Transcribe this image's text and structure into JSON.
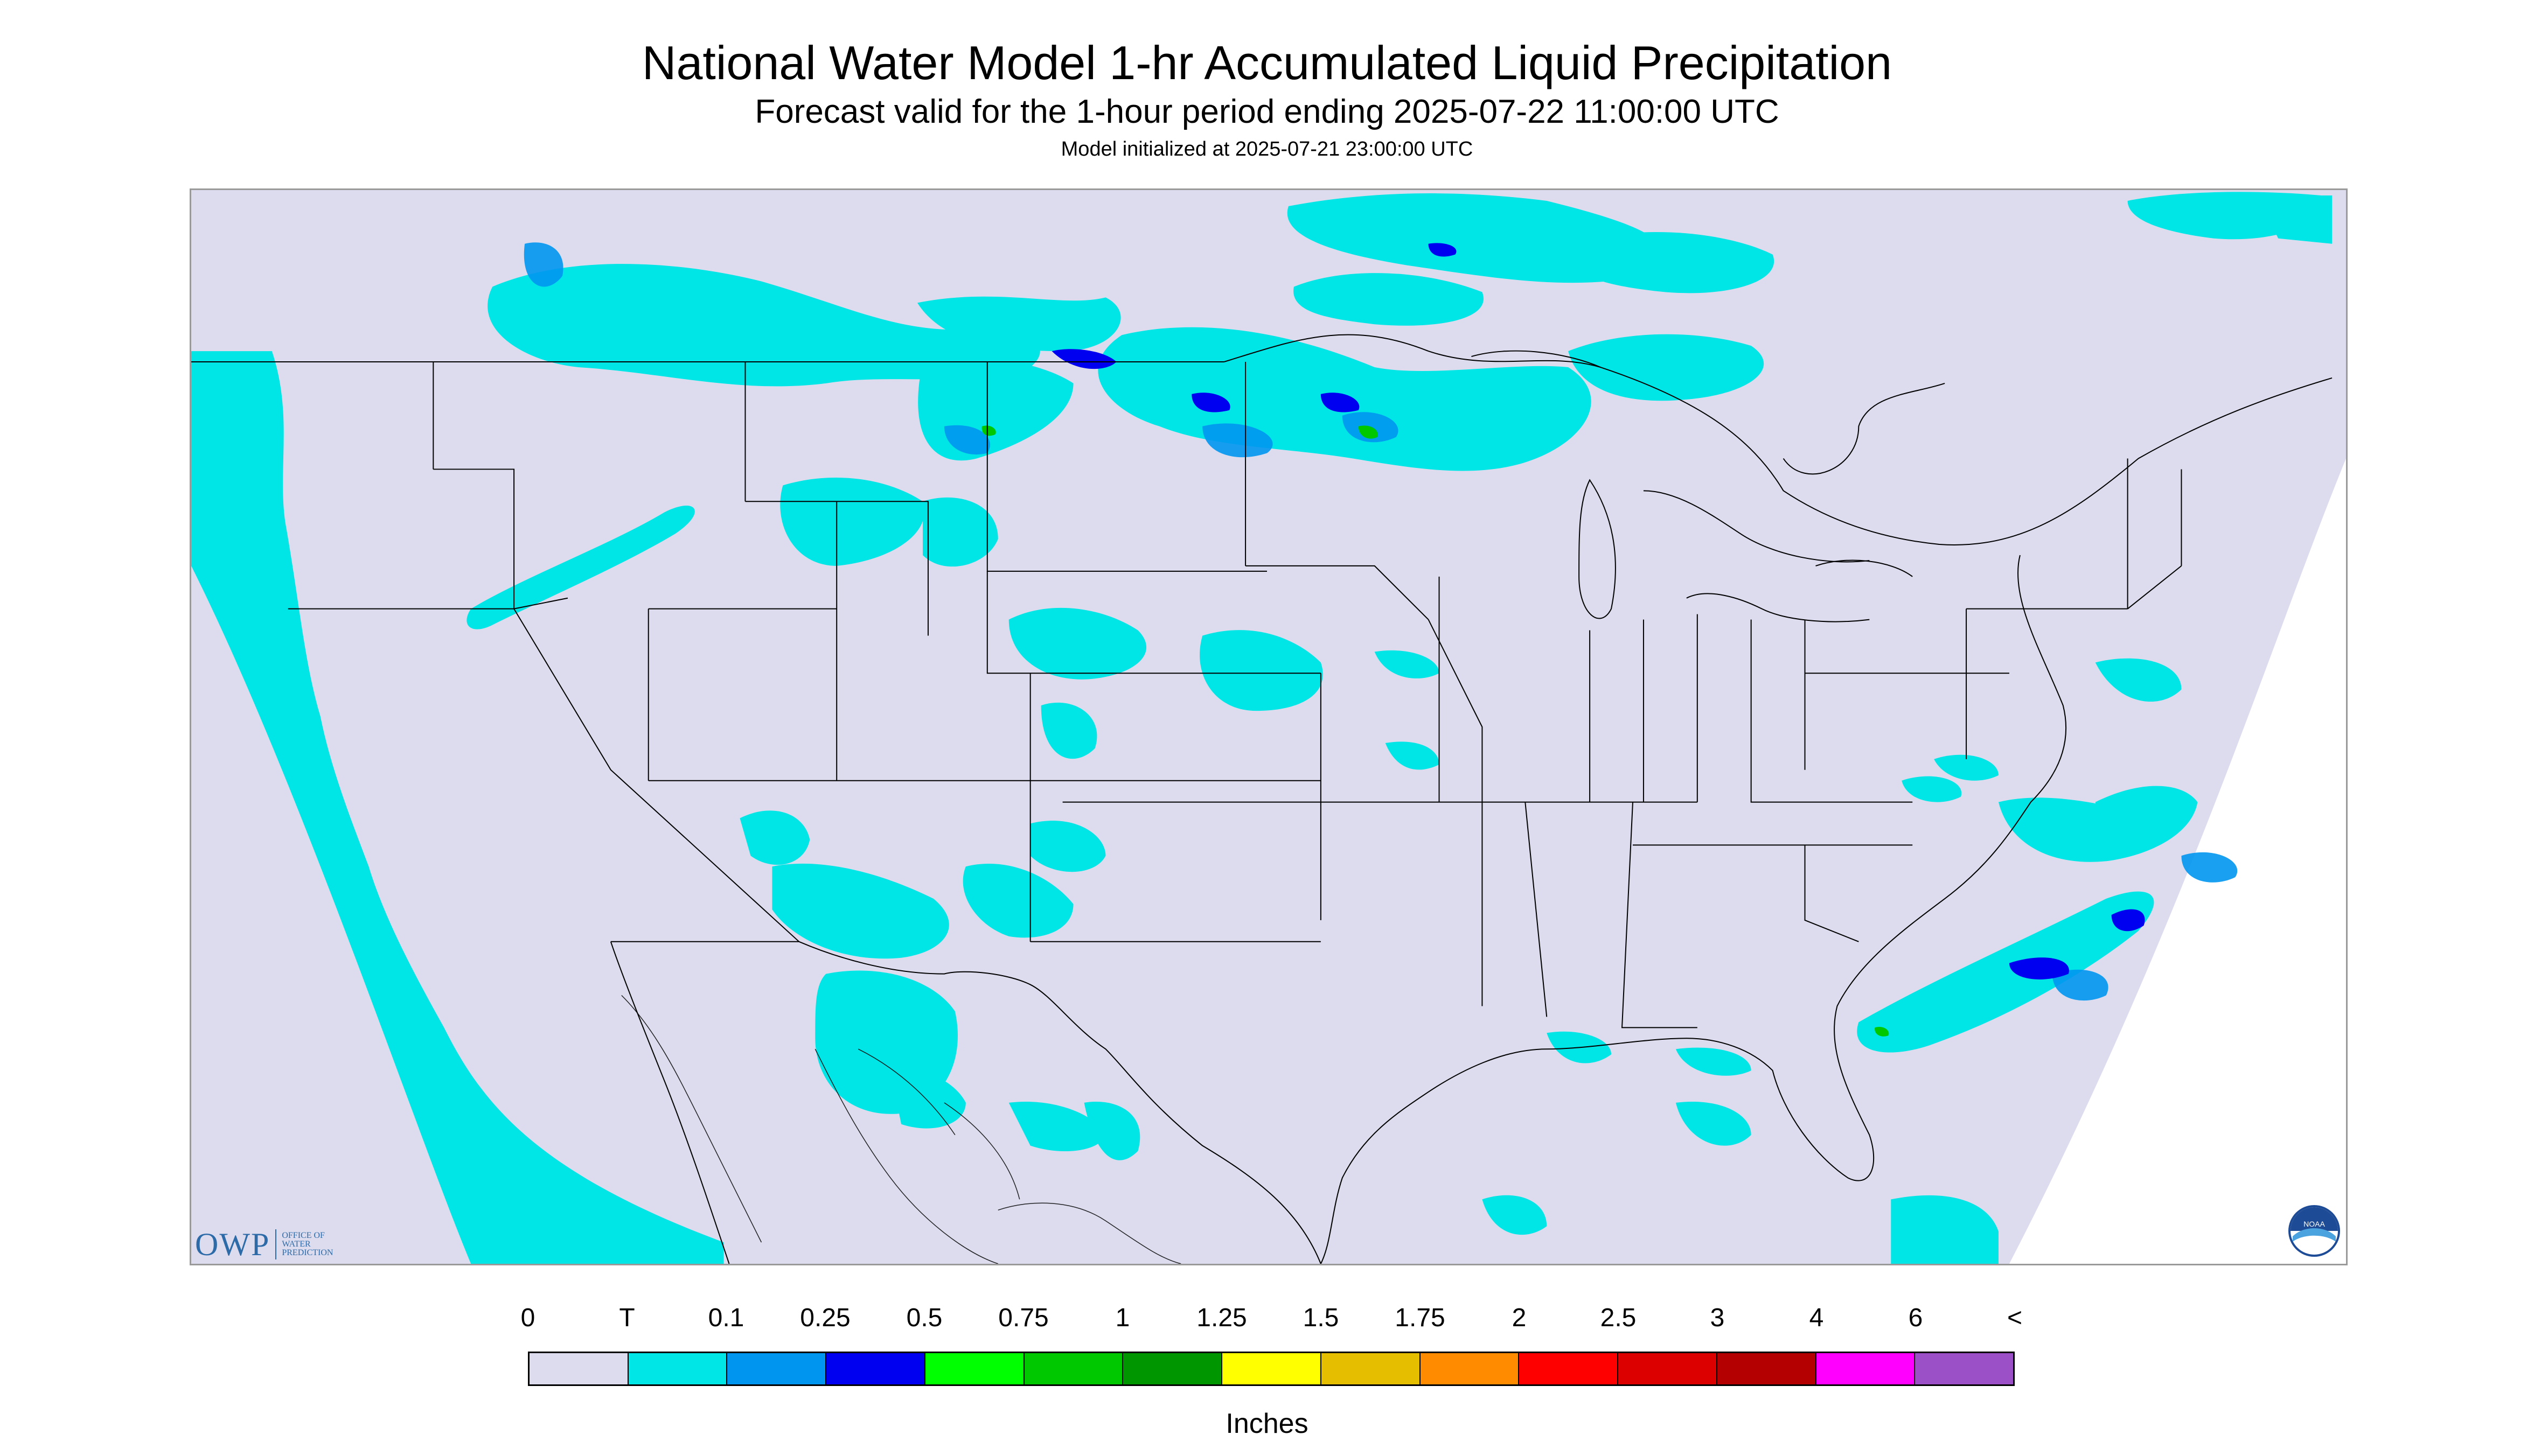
{
  "title": "National Water Model 1-hr Accumulated Liquid Precipitation",
  "subtitle": "Forecast valid for the 1-hour period ending 2025-07-22 11:00:00 UTC",
  "init_line": "Model initialized at 2025-07-21 23:00:00 UTC",
  "logos": {
    "owp_text": "OWP",
    "owp_subtext": [
      "OFFICE OF",
      "WATER",
      "PREDICTION"
    ],
    "noaa_text": "NOAA"
  },
  "legend": {
    "units": "Inches",
    "labels": [
      "0",
      "T",
      "0.1",
      "0.25",
      "0.5",
      "0.75",
      "1",
      "1.25",
      "1.5",
      "1.75",
      "2",
      "2.5",
      "3",
      "4",
      "6",
      "<"
    ],
    "colors": [
      "#dcdcee",
      "#00e5e5",
      "#0096f0",
      "#0000f0",
      "#00ff00",
      "#00c800",
      "#009600",
      "#ffff00",
      "#e6be00",
      "#ff8c00",
      "#ff0000",
      "#dc0000",
      "#b40000",
      "#ff00ff",
      "#9b50c8"
    ]
  },
  "colors": {
    "background": "#dcdcee",
    "outside_domain": "#ffffff",
    "trace": "#00e5e5",
    "boundary": "#000000"
  }
}
